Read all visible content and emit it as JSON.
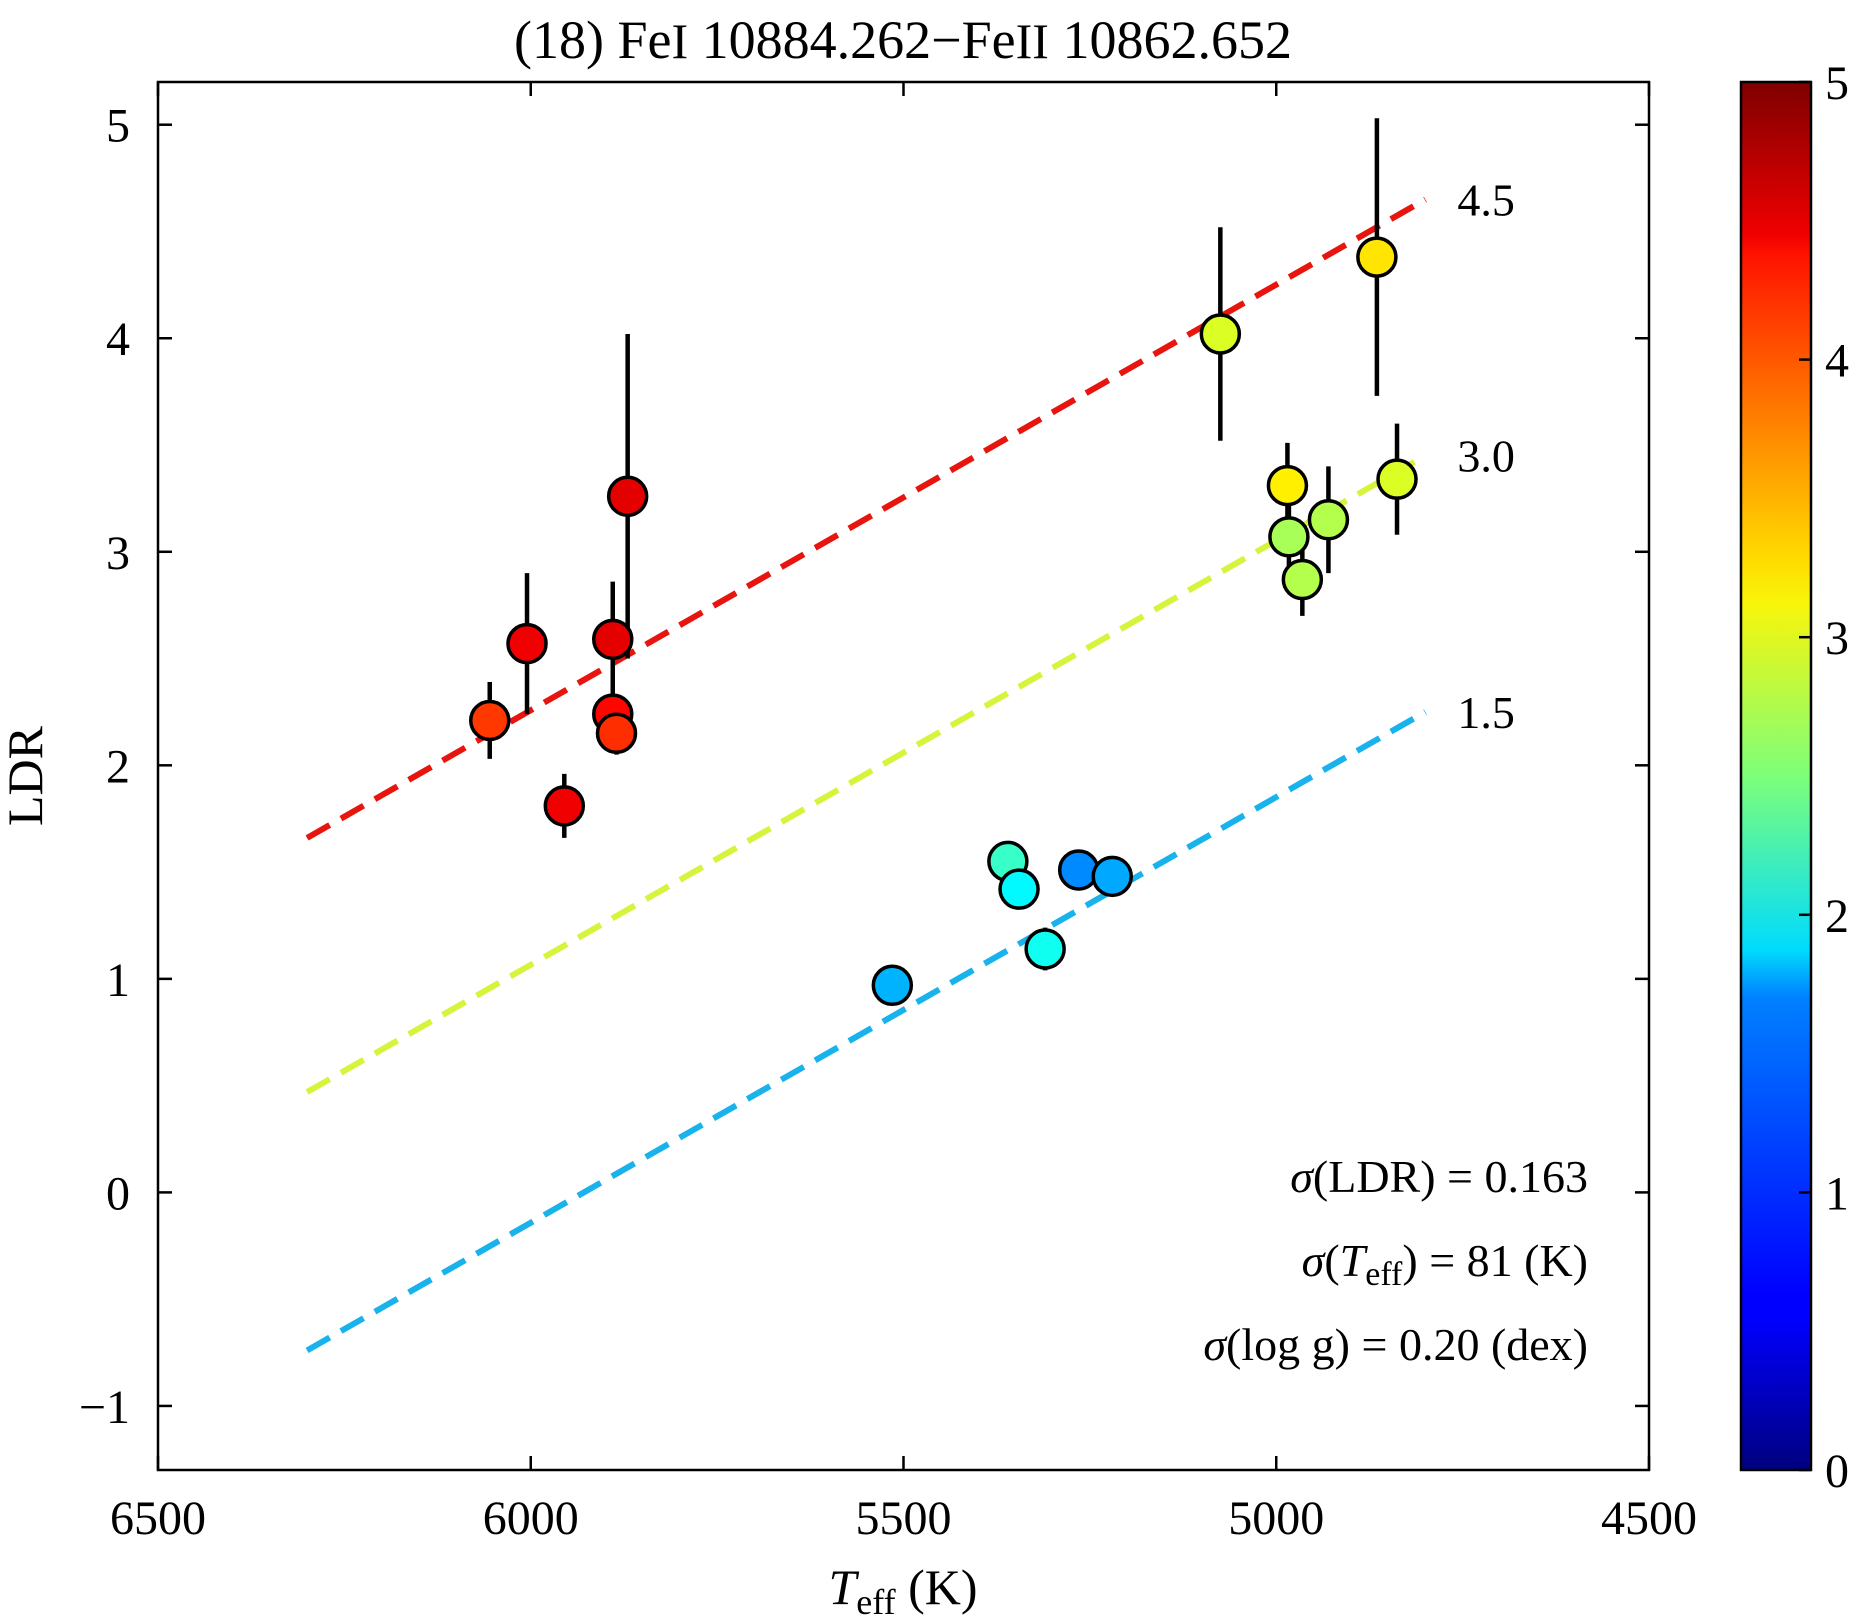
{
  "chart_data": {
    "type": "scatter",
    "title_parts": {
      "index": "(18)",
      "fe1": "Fe",
      "fe1_ion": "I",
      "wave1": "10884.262",
      "sep": "−",
      "fe2": "Fe",
      "fe2_ion": "II",
      "wave2": "10862.652"
    },
    "title": "(18) Fe I 10884.262−Fe II 10862.652",
    "xlabel": {
      "main": "T",
      "sub": "eff",
      "unit": "(K)"
    },
    "ylabel": "LDR",
    "xlim": [
      6500,
      4500
    ],
    "ylim": [
      -1.3,
      5.2
    ],
    "xticks": [
      6500,
      6000,
      5500,
      5000,
      4500
    ],
    "yticks": [
      -1,
      0,
      1,
      2,
      3,
      4,
      5
    ],
    "ytick_labels": [
      "−1",
      "0",
      "1",
      "2",
      "3",
      "4",
      "5"
    ],
    "colorbar": {
      "min": 0,
      "max": 5,
      "ticks": [
        0,
        1,
        2,
        3,
        4,
        5
      ]
    },
    "lines": [
      {
        "label": "4.5",
        "logg": 4.5,
        "x": [
          6300,
          4800
        ],
        "y": [
          1.66,
          4.65
        ],
        "color": "#e8150f"
      },
      {
        "label": "3.0",
        "logg": 3.0,
        "x": [
          6300,
          4800
        ],
        "y": [
          0.47,
          3.45
        ],
        "color": "#d4f53c"
      },
      {
        "label": "1.5",
        "logg": 1.5,
        "x": [
          6300,
          4800
        ],
        "y": [
          -0.74,
          2.25
        ],
        "color": "#18b2ec"
      }
    ],
    "points": [
      {
        "teff": 6055,
        "ldr": 2.21,
        "err": 0.18,
        "logg": 4.1
      },
      {
        "teff": 6005,
        "ldr": 2.57,
        "err": 0.33,
        "logg": 4.45
      },
      {
        "teff": 5955,
        "ldr": 1.81,
        "err": 0.15,
        "logg": 4.45
      },
      {
        "teff": 5890,
        "ldr": 2.59,
        "err": 0.27,
        "logg": 4.5
      },
      {
        "teff": 5890,
        "ldr": 2.24,
        "err": 0.12,
        "logg": 4.35
      },
      {
        "teff": 5885,
        "ldr": 2.15,
        "err": 0.1,
        "logg": 4.15
      },
      {
        "teff": 5870,
        "ldr": 3.26,
        "err": 0.76,
        "logg": 4.5
      },
      {
        "teff": 5515,
        "ldr": 0.97,
        "err": 0.04,
        "logg": 1.5
      },
      {
        "teff": 5360,
        "ldr": 1.55,
        "err": 0.04,
        "logg": 2.15
      },
      {
        "teff": 5345,
        "ldr": 1.42,
        "err": 0.04,
        "logg": 1.85
      },
      {
        "teff": 5310,
        "ldr": 1.14,
        "err": 0.1,
        "logg": 1.95
      },
      {
        "teff": 5265,
        "ldr": 1.51,
        "err": 0.08,
        "logg": 1.3
      },
      {
        "teff": 5220,
        "ldr": 1.48,
        "err": 0.04,
        "logg": 1.45
      },
      {
        "teff": 5075,
        "ldr": 4.02,
        "err": 0.5,
        "logg": 2.95
      },
      {
        "teff": 4985,
        "ldr": 3.31,
        "err": 0.2,
        "logg": 3.2
      },
      {
        "teff": 4983,
        "ldr": 3.07,
        "err": 0.18,
        "logg": 2.7
      },
      {
        "teff": 4965,
        "ldr": 2.87,
        "err": 0.17,
        "logg": 2.75
      },
      {
        "teff": 4930,
        "ldr": 3.15,
        "err": 0.25,
        "logg": 2.75
      },
      {
        "teff": 4865,
        "ldr": 4.38,
        "err": 0.65,
        "logg": 3.25
      },
      {
        "teff": 4838,
        "ldr": 3.34,
        "err": 0.26,
        "logg": 2.95
      }
    ],
    "stats": [
      {
        "sigma": "σ",
        "open": "(",
        "var": "LDR",
        "sub": "",
        "close": ")",
        "eq": " = ",
        "value": "0.163",
        "unit": ""
      },
      {
        "sigma": "σ",
        "open": "(",
        "var": "T",
        "sub": "eff",
        "close": ")",
        "eq": " = ",
        "value": "81",
        "unit": " (K)"
      },
      {
        "sigma": "σ",
        "open": "(",
        "var": "log g",
        "sub": "",
        "close": ")",
        "eq": " = ",
        "value": "0.20",
        "unit": " (dex)"
      }
    ]
  }
}
